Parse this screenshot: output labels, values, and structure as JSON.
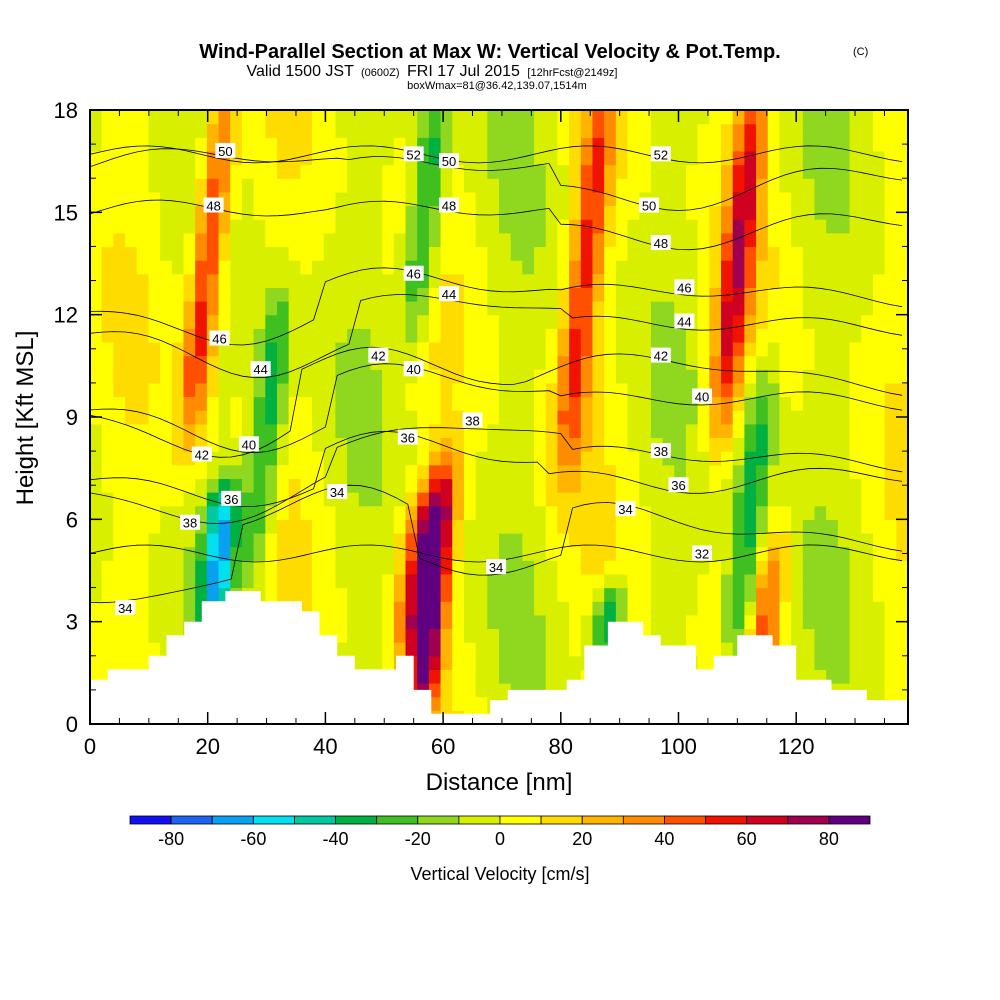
{
  "header": {
    "title": "Wind-Parallel Section at Max W: Vertical Velocity & Pot.Temp.",
    "copyright": "(C)",
    "valid_prefix": "Valid 1500 JST",
    "valid_utc": "(0600Z)",
    "valid_date": "FRI 17 Jul 2015",
    "forecast": "[12hrFcst@2149z]",
    "box_info": "boxWmax=81@36.42,139.07,1514m"
  },
  "chart_data": {
    "type": "heatmap",
    "xlabel": "Distance [nm]",
    "ylabel": "Height [Kft MSL]",
    "xlim": [
      0,
      139
    ],
    "ylim": [
      0,
      18
    ],
    "x_ticks": [
      0,
      20,
      40,
      60,
      80,
      100,
      120
    ],
    "y_ticks": [
      0,
      3,
      6,
      9,
      12,
      15,
      18
    ],
    "colorbar": {
      "label": "Vertical Velocity [cm/s]",
      "boundaries": [
        -90,
        -80,
        -70,
        -60,
        -50,
        -40,
        -30,
        -20,
        -10,
        0,
        10,
        20,
        30,
        40,
        50,
        60,
        70,
        80,
        90
      ],
      "tick_values": [
        -80,
        -60,
        -40,
        -20,
        0,
        20,
        40,
        60,
        80
      ],
      "colors": [
        "#1010f0",
        "#1e64f0",
        "#0aa0f0",
        "#00e0f0",
        "#00c8a0",
        "#00b040",
        "#40c020",
        "#90d820",
        "#d8f000",
        "#ffff00",
        "#ffdc00",
        "#ffb400",
        "#ff8c00",
        "#ff5000",
        "#f01400",
        "#d00020",
        "#a00050",
        "#600080"
      ]
    },
    "velocity_columns": [
      {
        "x": 20,
        "value": 60,
        "z_range": [
          9,
          18
        ]
      },
      {
        "x": 22,
        "value": -60,
        "z_range": [
          3.5,
          6.5
        ]
      },
      {
        "x": 30,
        "value": -40,
        "z_range": [
          5,
          12
        ]
      },
      {
        "x": 58,
        "value": 90,
        "z_range": [
          1,
          7
        ]
      },
      {
        "x": 55,
        "value": 40,
        "z_range": [
          3,
          6
        ]
      },
      {
        "x": 57,
        "value": -40,
        "z_range": [
          12,
          18
        ]
      },
      {
        "x": 84,
        "value": 50,
        "z_range": [
          8,
          18
        ]
      },
      {
        "x": 88,
        "value": -40,
        "z_range": [
          2.5,
          3.5
        ]
      },
      {
        "x": 110,
        "value": 60,
        "z_range": [
          9,
          18
        ]
      },
      {
        "x": 112,
        "value": -40,
        "z_range": [
          2,
          10
        ]
      },
      {
        "x": 115,
        "value": 40,
        "z_range": [
          1.5,
          5
        ]
      }
    ],
    "terrain_profile": [
      [
        0,
        1.3
      ],
      [
        3,
        1.3
      ],
      [
        3,
        1.6
      ],
      [
        10,
        1.6
      ],
      [
        10,
        2.0
      ],
      [
        13,
        2.0
      ],
      [
        13,
        2.6
      ],
      [
        16,
        2.6
      ],
      [
        16,
        3.0
      ],
      [
        19,
        3.0
      ],
      [
        19,
        3.6
      ],
      [
        23,
        3.6
      ],
      [
        23,
        3.9
      ],
      [
        29,
        3.9
      ],
      [
        29,
        3.6
      ],
      [
        36,
        3.6
      ],
      [
        36,
        3.3
      ],
      [
        39,
        3.3
      ],
      [
        39,
        2.6
      ],
      [
        42,
        2.6
      ],
      [
        42,
        2.0
      ],
      [
        45,
        2.0
      ],
      [
        45,
        1.6
      ],
      [
        52,
        1.6
      ],
      [
        52,
        2.0
      ],
      [
        55,
        2.0
      ],
      [
        55,
        1.0
      ],
      [
        58,
        1.0
      ],
      [
        58,
        0.3
      ],
      [
        68,
        0.3
      ],
      [
        68,
        0.7
      ],
      [
        71,
        0.7
      ],
      [
        71,
        1.0
      ],
      [
        81,
        1.0
      ],
      [
        81,
        1.3
      ],
      [
        84,
        1.3
      ],
      [
        84,
        2.3
      ],
      [
        88,
        2.3
      ],
      [
        88,
        3.0
      ],
      [
        94,
        3.0
      ],
      [
        94,
        2.6
      ],
      [
        97,
        2.6
      ],
      [
        97,
        2.3
      ],
      [
        103,
        2.3
      ],
      [
        103,
        1.6
      ],
      [
        106,
        1.6
      ],
      [
        106,
        2.0
      ],
      [
        110,
        2.0
      ],
      [
        110,
        2.6
      ],
      [
        116,
        2.6
      ],
      [
        116,
        2.3
      ],
      [
        120,
        2.3
      ],
      [
        120,
        1.3
      ],
      [
        126,
        1.3
      ],
      [
        126,
        1.0
      ],
      [
        132,
        1.0
      ],
      [
        132,
        0.7
      ],
      [
        139,
        0.7
      ]
    ],
    "theta_contour_labels": [
      {
        "text": "50",
        "x": 23,
        "y": 16.8
      },
      {
        "text": "48",
        "x": 21,
        "y": 15.2
      },
      {
        "text": "46",
        "x": 22,
        "y": 11.3
      },
      {
        "text": "44",
        "x": 29,
        "y": 10.4
      },
      {
        "text": "42",
        "x": 19,
        "y": 7.9
      },
      {
        "text": "40",
        "x": 27,
        "y": 8.2
      },
      {
        "text": "38",
        "x": 17,
        "y": 5.9
      },
      {
        "text": "36",
        "x": 24,
        "y": 6.6
      },
      {
        "text": "34",
        "x": 6,
        "y": 3.4
      },
      {
        "text": "52",
        "x": 55,
        "y": 16.7
      },
      {
        "text": "50",
        "x": 61,
        "y": 16.5
      },
      {
        "text": "48",
        "x": 61,
        "y": 15.2
      },
      {
        "text": "46",
        "x": 55,
        "y": 13.2
      },
      {
        "text": "44",
        "x": 61,
        "y": 12.6
      },
      {
        "text": "42",
        "x": 49,
        "y": 10.8
      },
      {
        "text": "40",
        "x": 55,
        "y": 10.4
      },
      {
        "text": "38",
        "x": 65,
        "y": 8.9
      },
      {
        "text": "36",
        "x": 54,
        "y": 8.4
      },
      {
        "text": "34",
        "x": 42,
        "y": 6.8
      },
      {
        "text": "34",
        "x": 69,
        "y": 4.6
      },
      {
        "text": "52",
        "x": 97,
        "y": 16.7
      },
      {
        "text": "50",
        "x": 95,
        "y": 15.2
      },
      {
        "text": "48",
        "x": 97,
        "y": 14.1
      },
      {
        "text": "46",
        "x": 101,
        "y": 12.8
      },
      {
        "text": "44",
        "x": 101,
        "y": 11.8
      },
      {
        "text": "42",
        "x": 97,
        "y": 10.8
      },
      {
        "text": "40",
        "x": 104,
        "y": 9.6
      },
      {
        "text": "38",
        "x": 97,
        "y": 8.0
      },
      {
        "text": "36",
        "x": 100,
        "y": 7.0
      },
      {
        "text": "34",
        "x": 91,
        "y": 6.3
      },
      {
        "text": "32",
        "x": 104,
        "y": 5.0
      }
    ]
  }
}
